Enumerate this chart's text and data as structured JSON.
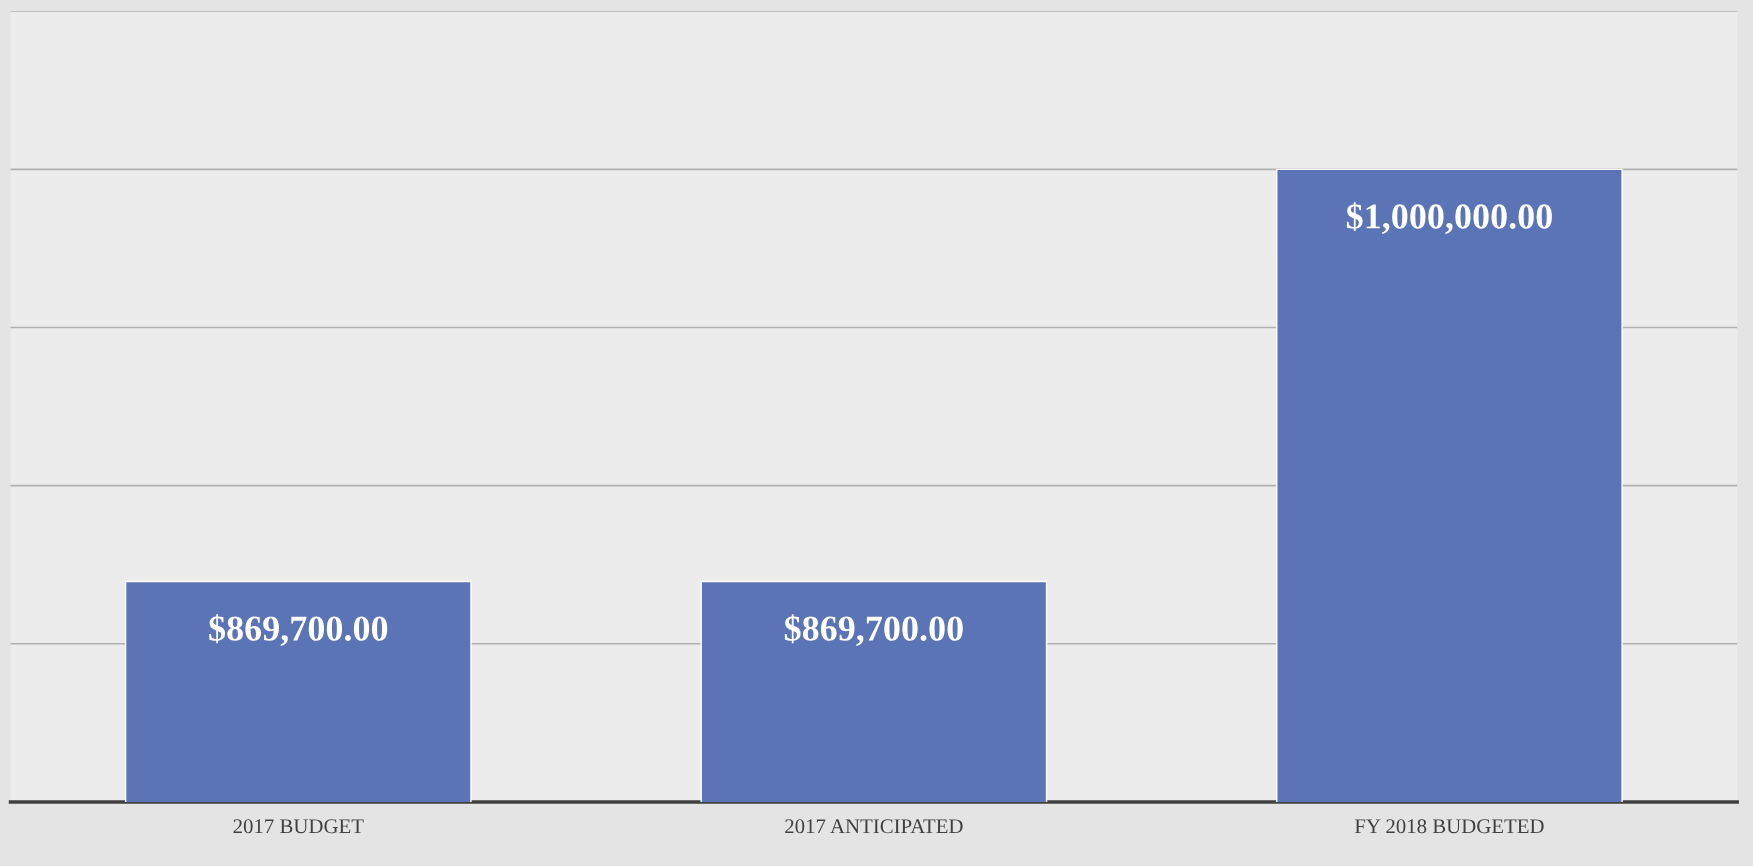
{
  "chart_data": {
    "type": "bar",
    "categories": [
      "2017 BUDGET",
      "2017 ANTICIPATED",
      "FY 2018 BUDGETED"
    ],
    "values": [
      869700,
      869700,
      1000000
    ],
    "value_labels": [
      "$869,700.00",
      "$869,700.00",
      "$1,000,000.00"
    ],
    "color": "#5b74b6",
    "ylim": [
      800000,
      1050000
    ],
    "yticks": [
      {
        "value": 850000,
        "label": null
      },
      {
        "value": 900000,
        "label": null
      },
      {
        "value": 950000,
        "label": null
      },
      {
        "value": 1000000,
        "label": null
      },
      {
        "value": 1050000,
        "label": null
      }
    ],
    "grid": "y",
    "tick_labels": "x"
  }
}
